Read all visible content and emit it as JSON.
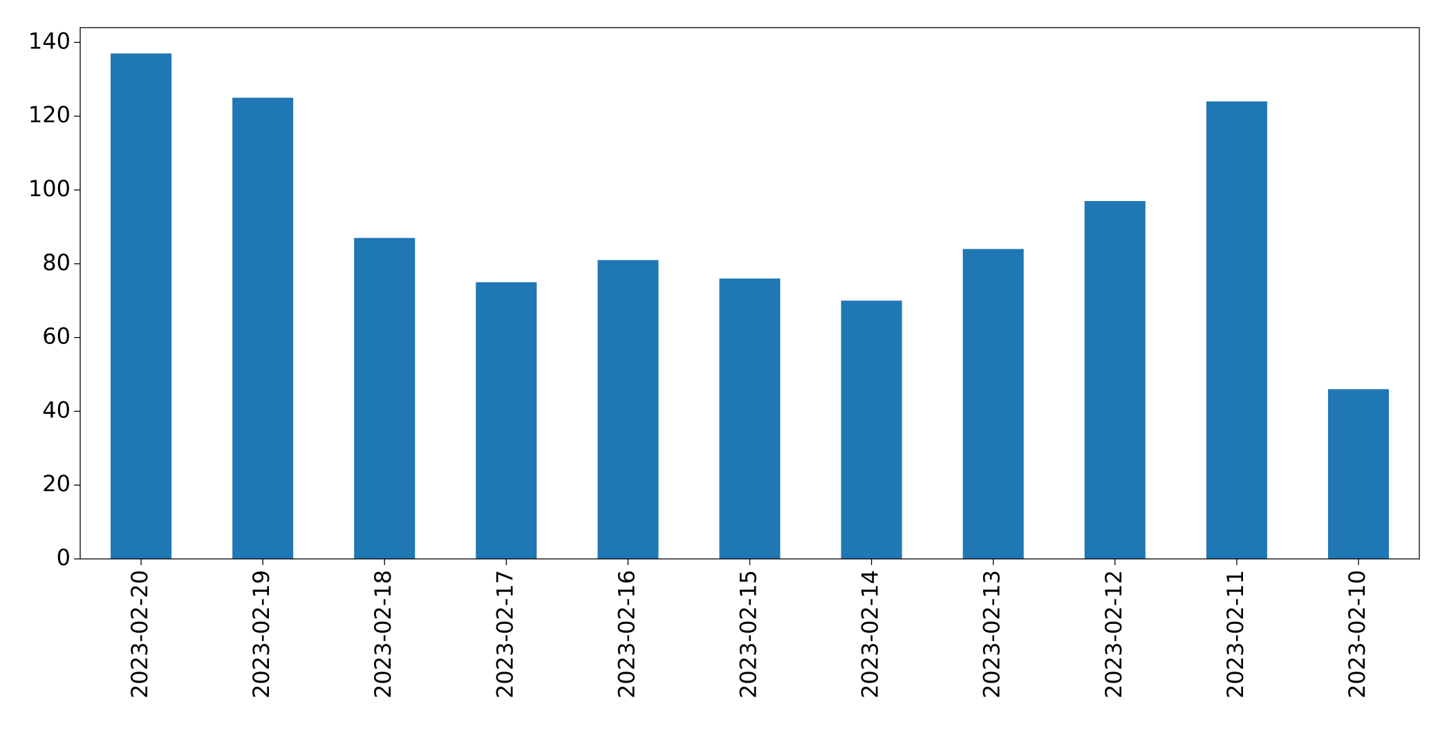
{
  "chart_data": {
    "type": "bar",
    "categories": [
      "2023-02-20",
      "2023-02-19",
      "2023-02-18",
      "2023-02-17",
      "2023-02-16",
      "2023-02-15",
      "2023-02-14",
      "2023-02-13",
      "2023-02-12",
      "2023-02-11",
      "2023-02-10"
    ],
    "values": [
      137,
      125,
      87,
      75,
      81,
      76,
      70,
      84,
      97,
      124,
      46
    ],
    "color": "#1f77b4",
    "ylim": [
      0,
      144
    ],
    "yticks": [
      0,
      20,
      40,
      60,
      80,
      100,
      120,
      140
    ],
    "grid": false
  }
}
